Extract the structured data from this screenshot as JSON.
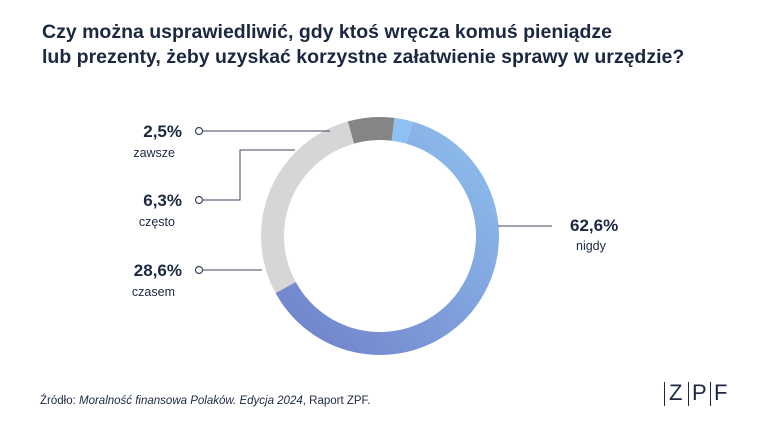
{
  "title_line1": "Czy można usprawiedliwić, gdy ktoś wręcza komuś pieniądze",
  "title_line2": "lub prezenty, żeby uzyskać korzystne załatwienie sprawy w urzędzie?",
  "source": {
    "prefix": "Źródło: ",
    "italic": "Moralność finansowa Polaków. Edycja 2024",
    "suffix": ", Raport ZPF."
  },
  "logo": {
    "letters": [
      "Z",
      "P",
      "F"
    ]
  },
  "chart_data": {
    "type": "pie",
    "style": "donut",
    "slices": [
      {
        "label": "nigdy",
        "value": 62.6,
        "value_label": "62,6%",
        "color_start": "#6f7ec8",
        "color_end": "#8fc2ef"
      },
      {
        "label": "czasem",
        "value": 28.6,
        "value_label": "28,6%",
        "color": "#d6d6d6"
      },
      {
        "label": "często",
        "value": 6.3,
        "value_label": "6,3%",
        "color": "#858585"
      },
      {
        "label": "zawsze",
        "value": 2.5,
        "value_label": "2,5%",
        "color": "#8ec0f3"
      }
    ],
    "start": "top-right, clockwise",
    "legend": "callout labels"
  }
}
